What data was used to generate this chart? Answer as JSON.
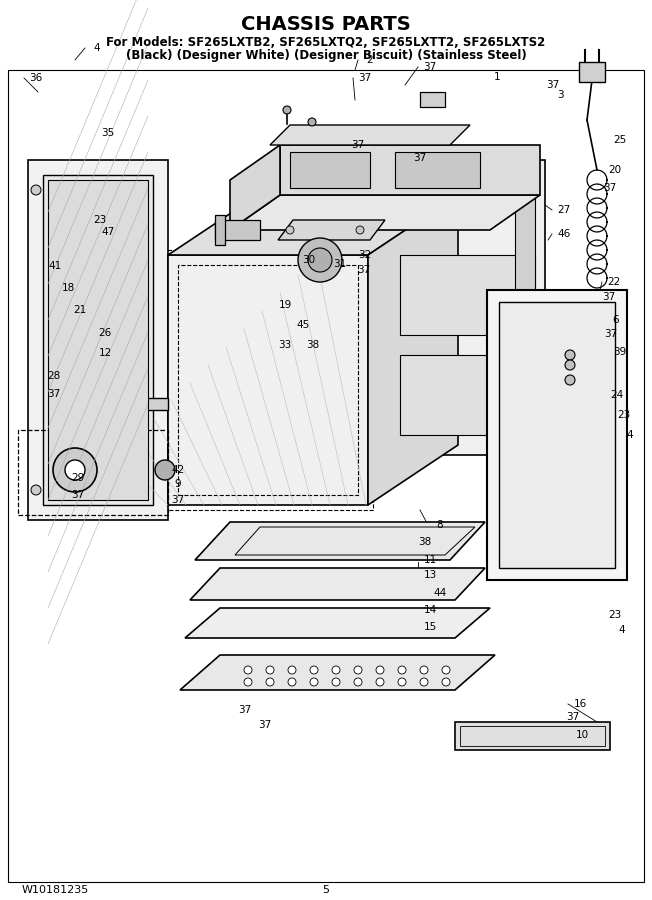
{
  "title": "CHASSIS PARTS",
  "subtitle1": "For Models: SF265LXTB2, SF265LXTQ2, SF265LXTT2, SF265LXTS2",
  "subtitle2": "(Black) (Designer White) (Designer Biscuit) (Stainless Steel)",
  "footer_left": "W10181235",
  "footer_center": "5",
  "bg_color": "#ffffff",
  "title_fontsize": 14,
  "subtitle_fontsize": 8.5,
  "footer_fontsize": 8,
  "fig_width": 6.52,
  "fig_height": 9.0,
  "dpi": 100
}
